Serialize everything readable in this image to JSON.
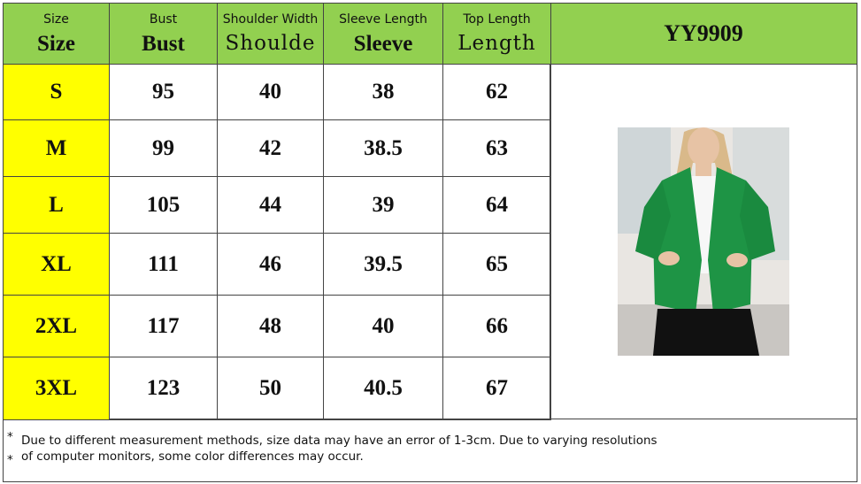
{
  "header": {
    "labels": [
      "Size",
      "Bust",
      "Shoulder Width",
      "Sleeve Length",
      "Top Length"
    ],
    "big_labels": [
      "Size",
      "Bust",
      "Shoulde",
      "Sleeve",
      "Length"
    ],
    "model": "YY9909"
  },
  "table": {
    "rows": [
      [
        "S",
        95,
        40,
        38,
        62
      ],
      [
        "M",
        99,
        42,
        38.5,
        63
      ],
      [
        "L",
        105,
        44,
        39,
        64
      ],
      [
        "XL",
        111,
        46,
        39.5,
        65
      ],
      [
        "2XL",
        117,
        48,
        40,
        66
      ],
      [
        "3XL",
        123,
        50,
        40.5,
        67
      ]
    ]
  },
  "note": {
    "marks": [
      "*",
      "*"
    ],
    "lines": [
      "Due to different measurement methods, size data may have an error of 1-3cm. Due to varying resolutions",
      "of computer monitors, some color differences may occur."
    ]
  }
}
